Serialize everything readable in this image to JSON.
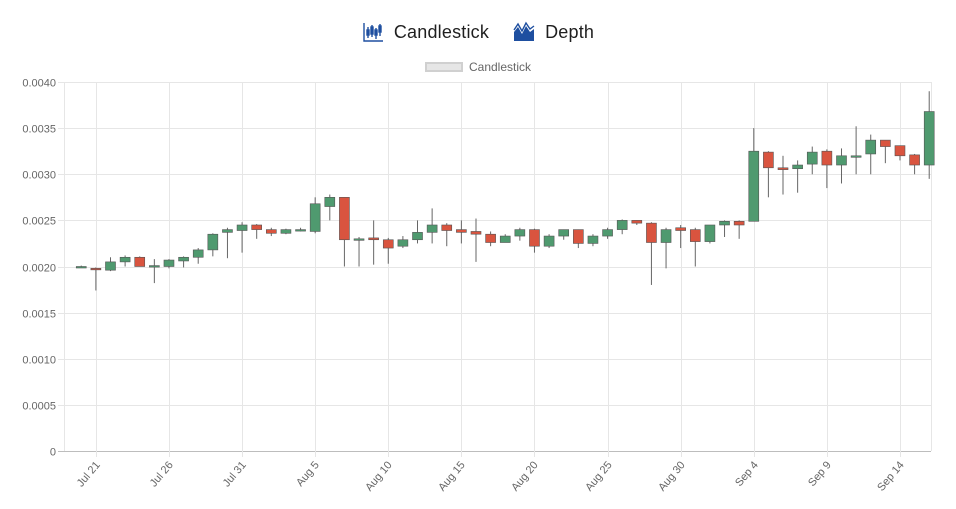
{
  "tabs": [
    {
      "label": "Candlestick",
      "icon": "candlestick-chart-icon",
      "active": true
    },
    {
      "label": "Depth",
      "icon": "depth-chart-icon",
      "active": false
    }
  ],
  "colors": {
    "up": "#4f9a6f",
    "down": "#d9543f",
    "wick": "#666666",
    "grid": "#e6e6e6",
    "icon": "#1e4fa0"
  },
  "chart_data": {
    "type": "candlestick",
    "legend": {
      "label": "Candlestick",
      "placement": "top-center"
    },
    "grid": true,
    "ylim": [
      0,
      0.004
    ],
    "y_ticks": [
      "0",
      "0.0005",
      "0.0010",
      "0.0015",
      "0.0020",
      "0.0025",
      "0.0030",
      "0.0035",
      "0.0040"
    ],
    "x_ticks": [
      "Jul 21",
      "Jul 26",
      "Jul 31",
      "Aug 5",
      "Aug 10",
      "Aug 15",
      "Aug 20",
      "Aug 25",
      "Aug 30",
      "Sep 4",
      "Sep 9",
      "Sep 14"
    ],
    "candles": [
      {
        "date": "Jul 20",
        "open": 0.002,
        "high": 0.00201,
        "low": 0.00199,
        "close": 0.002
      },
      {
        "date": "Jul 21",
        "open": 0.00198,
        "high": 0.00199,
        "low": 0.00174,
        "close": 0.00197
      },
      {
        "date": "Jul 22",
        "open": 0.00196,
        "high": 0.0021,
        "low": 0.00195,
        "close": 0.00205
      },
      {
        "date": "Jul 23",
        "open": 0.00205,
        "high": 0.00212,
        "low": 0.002,
        "close": 0.0021
      },
      {
        "date": "Jul 24",
        "open": 0.0021,
        "high": 0.00211,
        "low": 0.002,
        "close": 0.002
      },
      {
        "date": "Jul 25",
        "open": 0.002,
        "high": 0.00208,
        "low": 0.00182,
        "close": 0.00201
      },
      {
        "date": "Jul 26",
        "open": 0.002,
        "high": 0.00208,
        "low": 0.00198,
        "close": 0.00207
      },
      {
        "date": "Jul 27",
        "open": 0.00206,
        "high": 0.00211,
        "low": 0.00199,
        "close": 0.0021
      },
      {
        "date": "Jul 28",
        "open": 0.0021,
        "high": 0.0022,
        "low": 0.00203,
        "close": 0.00218
      },
      {
        "date": "Jul 29",
        "open": 0.00218,
        "high": 0.00236,
        "low": 0.00211,
        "close": 0.00235
      },
      {
        "date": "Jul 30",
        "open": 0.00237,
        "high": 0.00242,
        "low": 0.00209,
        "close": 0.0024
      },
      {
        "date": "Jul 31",
        "open": 0.00239,
        "high": 0.00248,
        "low": 0.00215,
        "close": 0.00245
      },
      {
        "date": "Aug 1",
        "open": 0.00245,
        "high": 0.00246,
        "low": 0.0023,
        "close": 0.0024
      },
      {
        "date": "Aug 2",
        "open": 0.0024,
        "high": 0.00242,
        "low": 0.00233,
        "close": 0.00236
      },
      {
        "date": "Aug 3",
        "open": 0.00236,
        "high": 0.00241,
        "low": 0.00235,
        "close": 0.0024
      },
      {
        "date": "Aug 4",
        "open": 0.00239,
        "high": 0.00242,
        "low": 0.00238,
        "close": 0.0024
      },
      {
        "date": "Aug 5",
        "open": 0.00238,
        "high": 0.00275,
        "low": 0.00236,
        "close": 0.00268
      },
      {
        "date": "Aug 6",
        "open": 0.00265,
        "high": 0.00278,
        "low": 0.0025,
        "close": 0.00275
      },
      {
        "date": "Aug 7",
        "open": 0.00275,
        "high": 0.00275,
        "low": 0.002,
        "close": 0.00229
      },
      {
        "date": "Aug 8",
        "open": 0.00229,
        "high": 0.00232,
        "low": 0.002,
        "close": 0.0023
      },
      {
        "date": "Aug 9",
        "open": 0.00231,
        "high": 0.0025,
        "low": 0.00202,
        "close": 0.00229
      },
      {
        "date": "Aug 10",
        "open": 0.00229,
        "high": 0.00231,
        "low": 0.00203,
        "close": 0.0022
      },
      {
        "date": "Aug 11",
        "open": 0.00222,
        "high": 0.00233,
        "low": 0.0022,
        "close": 0.00229
      },
      {
        "date": "Aug 12",
        "open": 0.00229,
        "high": 0.0025,
        "low": 0.00225,
        "close": 0.00237
      },
      {
        "date": "Aug 13",
        "open": 0.00237,
        "high": 0.00263,
        "low": 0.00225,
        "close": 0.00245
      },
      {
        "date": "Aug 14",
        "open": 0.00245,
        "high": 0.00247,
        "low": 0.00222,
        "close": 0.00239
      },
      {
        "date": "Aug 15",
        "open": 0.0024,
        "high": 0.0025,
        "low": 0.00225,
        "close": 0.00237
      },
      {
        "date": "Aug 16",
        "open": 0.00238,
        "high": 0.00252,
        "low": 0.00205,
        "close": 0.00235
      },
      {
        "date": "Aug 17",
        "open": 0.00235,
        "high": 0.00238,
        "low": 0.00222,
        "close": 0.00226
      },
      {
        "date": "Aug 18",
        "open": 0.00226,
        "high": 0.00235,
        "low": 0.00226,
        "close": 0.00233
      },
      {
        "date": "Aug 19",
        "open": 0.00233,
        "high": 0.00242,
        "low": 0.00228,
        "close": 0.0024
      },
      {
        "date": "Aug 20",
        "open": 0.0024,
        "high": 0.00241,
        "low": 0.00215,
        "close": 0.00222
      },
      {
        "date": "Aug 21",
        "open": 0.00222,
        "high": 0.00235,
        "low": 0.0022,
        "close": 0.00233
      },
      {
        "date": "Aug 22",
        "open": 0.00233,
        "high": 0.0024,
        "low": 0.00229,
        "close": 0.0024
      },
      {
        "date": "Aug 23",
        "open": 0.0024,
        "high": 0.0024,
        "low": 0.0022,
        "close": 0.00225
      },
      {
        "date": "Aug 24",
        "open": 0.00225,
        "high": 0.00235,
        "low": 0.00222,
        "close": 0.00233
      },
      {
        "date": "Aug 25",
        "open": 0.00233,
        "high": 0.00242,
        "low": 0.0023,
        "close": 0.0024
      },
      {
        "date": "Aug 26",
        "open": 0.0024,
        "high": 0.00251,
        "low": 0.00235,
        "close": 0.0025
      },
      {
        "date": "Aug 27",
        "open": 0.0025,
        "high": 0.0025,
        "low": 0.00245,
        "close": 0.00247
      },
      {
        "date": "Aug 28",
        "open": 0.00247,
        "high": 0.00248,
        "low": 0.0018,
        "close": 0.00226
      },
      {
        "date": "Aug 29",
        "open": 0.00226,
        "high": 0.00242,
        "low": 0.00198,
        "close": 0.0024
      },
      {
        "date": "Aug 30",
        "open": 0.00242,
        "high": 0.00245,
        "low": 0.0022,
        "close": 0.00239
      },
      {
        "date": "Aug 31",
        "open": 0.0024,
        "high": 0.00242,
        "low": 0.002,
        "close": 0.00227
      },
      {
        "date": "Sep 1",
        "open": 0.00227,
        "high": 0.00245,
        "low": 0.00225,
        "close": 0.00245
      },
      {
        "date": "Sep 2",
        "open": 0.00245,
        "high": 0.0025,
        "low": 0.00232,
        "close": 0.00249
      },
      {
        "date": "Sep 3",
        "open": 0.00249,
        "high": 0.0025,
        "low": 0.0023,
        "close": 0.00245
      },
      {
        "date": "Sep 4",
        "open": 0.00249,
        "high": 0.0035,
        "low": 0.00249,
        "close": 0.00325
      },
      {
        "date": "Sep 5",
        "open": 0.00324,
        "high": 0.00325,
        "low": 0.00275,
        "close": 0.00307
      },
      {
        "date": "Sep 6",
        "open": 0.00307,
        "high": 0.0032,
        "low": 0.00278,
        "close": 0.00305
      },
      {
        "date": "Sep 7",
        "open": 0.00306,
        "high": 0.00315,
        "low": 0.0028,
        "close": 0.0031
      },
      {
        "date": "Sep 8",
        "open": 0.00311,
        "high": 0.0033,
        "low": 0.003,
        "close": 0.00324
      },
      {
        "date": "Sep 9",
        "open": 0.00325,
        "high": 0.00327,
        "low": 0.00285,
        "close": 0.0031
      },
      {
        "date": "Sep 10",
        "open": 0.0031,
        "high": 0.00328,
        "low": 0.0029,
        "close": 0.0032
      },
      {
        "date": "Sep 11",
        "open": 0.00319,
        "high": 0.00352,
        "low": 0.003,
        "close": 0.0032
      },
      {
        "date": "Sep 12",
        "open": 0.00322,
        "high": 0.00343,
        "low": 0.003,
        "close": 0.00337
      },
      {
        "date": "Sep 13",
        "open": 0.00337,
        "high": 0.00337,
        "low": 0.00312,
        "close": 0.0033
      },
      {
        "date": "Sep 14",
        "open": 0.00331,
        "high": 0.00331,
        "low": 0.00315,
        "close": 0.0032
      },
      {
        "date": "Sep 15",
        "open": 0.00321,
        "high": 0.00322,
        "low": 0.003,
        "close": 0.0031
      },
      {
        "date": "Sep 16",
        "open": 0.0031,
        "high": 0.0039,
        "low": 0.00295,
        "close": 0.00368
      }
    ]
  }
}
